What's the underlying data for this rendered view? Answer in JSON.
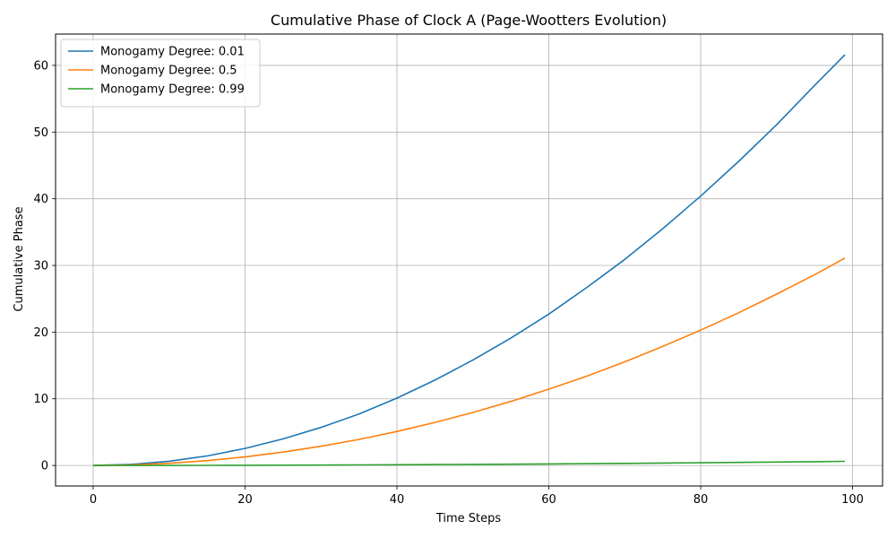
{
  "chart_data": {
    "type": "line",
    "title": "Cumulative Phase of Clock A (Page-Wootters Evolution)",
    "xlabel": "Time Steps",
    "ylabel": "Cumulative Phase",
    "xlim": [
      -4.95,
      103.95
    ],
    "ylim": [
      -3.08,
      64.7
    ],
    "xticks": [
      0,
      20,
      40,
      60,
      80,
      100
    ],
    "yticks": [
      0,
      10,
      20,
      30,
      40,
      50,
      60
    ],
    "grid": true,
    "legend_position": "top-left",
    "x": [
      0,
      5,
      10,
      15,
      20,
      25,
      30,
      35,
      40,
      45,
      50,
      55,
      60,
      65,
      70,
      75,
      80,
      85,
      90,
      95,
      99
    ],
    "series": [
      {
        "name": "Monogamy Degree: 0.01",
        "color": "#1f77b4",
        "values": [
          0,
          0.16,
          0.63,
          1.42,
          2.55,
          3.98,
          5.7,
          7.7,
          10.1,
          12.8,
          15.8,
          19.1,
          22.7,
          26.7,
          30.9,
          35.5,
          40.4,
          45.6,
          51.1,
          57.0,
          61.6
        ]
      },
      {
        "name": "Monogamy Degree: 0.5",
        "color": "#ff7f0e",
        "values": [
          0,
          0.08,
          0.32,
          0.72,
          1.28,
          2.0,
          2.88,
          3.9,
          5.1,
          6.45,
          7.95,
          9.6,
          11.45,
          13.4,
          15.55,
          17.85,
          20.3,
          22.9,
          25.7,
          28.6,
          31.1
        ]
      },
      {
        "name": "Monogamy Degree: 0.99",
        "color": "#2ca02c",
        "values": [
          0,
          0.002,
          0.006,
          0.014,
          0.026,
          0.04,
          0.058,
          0.078,
          0.102,
          0.13,
          0.16,
          0.193,
          0.23,
          0.27,
          0.31,
          0.357,
          0.405,
          0.457,
          0.512,
          0.57,
          0.62
        ]
      }
    ]
  }
}
